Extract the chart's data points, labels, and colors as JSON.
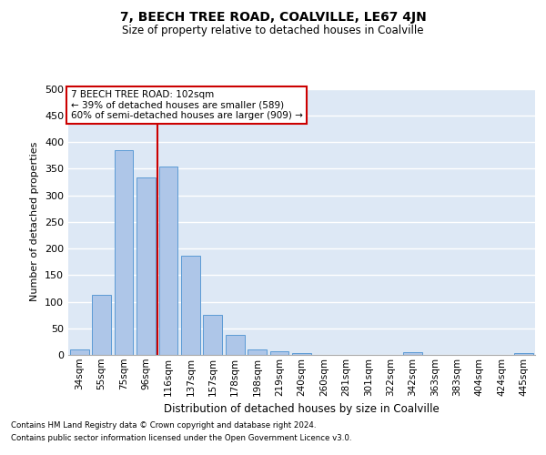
{
  "title": "7, BEECH TREE ROAD, COALVILLE, LE67 4JN",
  "subtitle": "Size of property relative to detached houses in Coalville",
  "xlabel": "Distribution of detached houses by size in Coalville",
  "ylabel": "Number of detached properties",
  "footnote1": "Contains HM Land Registry data © Crown copyright and database right 2024.",
  "footnote2": "Contains public sector information licensed under the Open Government Licence v3.0.",
  "bar_labels": [
    "34sqm",
    "55sqm",
    "75sqm",
    "96sqm",
    "116sqm",
    "137sqm",
    "157sqm",
    "178sqm",
    "198sqm",
    "219sqm",
    "240sqm",
    "260sqm",
    "281sqm",
    "301sqm",
    "322sqm",
    "342sqm",
    "363sqm",
    "383sqm",
    "404sqm",
    "424sqm",
    "445sqm"
  ],
  "bar_values": [
    10,
    112,
    385,
    333,
    353,
    187,
    76,
    38,
    11,
    6,
    3,
    0,
    0,
    0,
    0,
    5,
    0,
    0,
    0,
    0,
    4
  ],
  "bar_color": "#aec6e8",
  "bar_edgecolor": "#5b9bd5",
  "background_color": "#dde8f5",
  "grid_color": "#ffffff",
  "vline_x_index": 3.52,
  "vline_color": "#cc0000",
  "annotation_text": "7 BEECH TREE ROAD: 102sqm\n← 39% of detached houses are smaller (589)\n60% of semi-detached houses are larger (909) →",
  "annotation_box_color": "#ffffff",
  "annotation_box_edgecolor": "#cc0000",
  "ylim": [
    0,
    500
  ],
  "yticks": [
    0,
    50,
    100,
    150,
    200,
    250,
    300,
    350,
    400,
    450,
    500
  ],
  "figsize": [
    6.0,
    5.0
  ],
  "dpi": 100
}
